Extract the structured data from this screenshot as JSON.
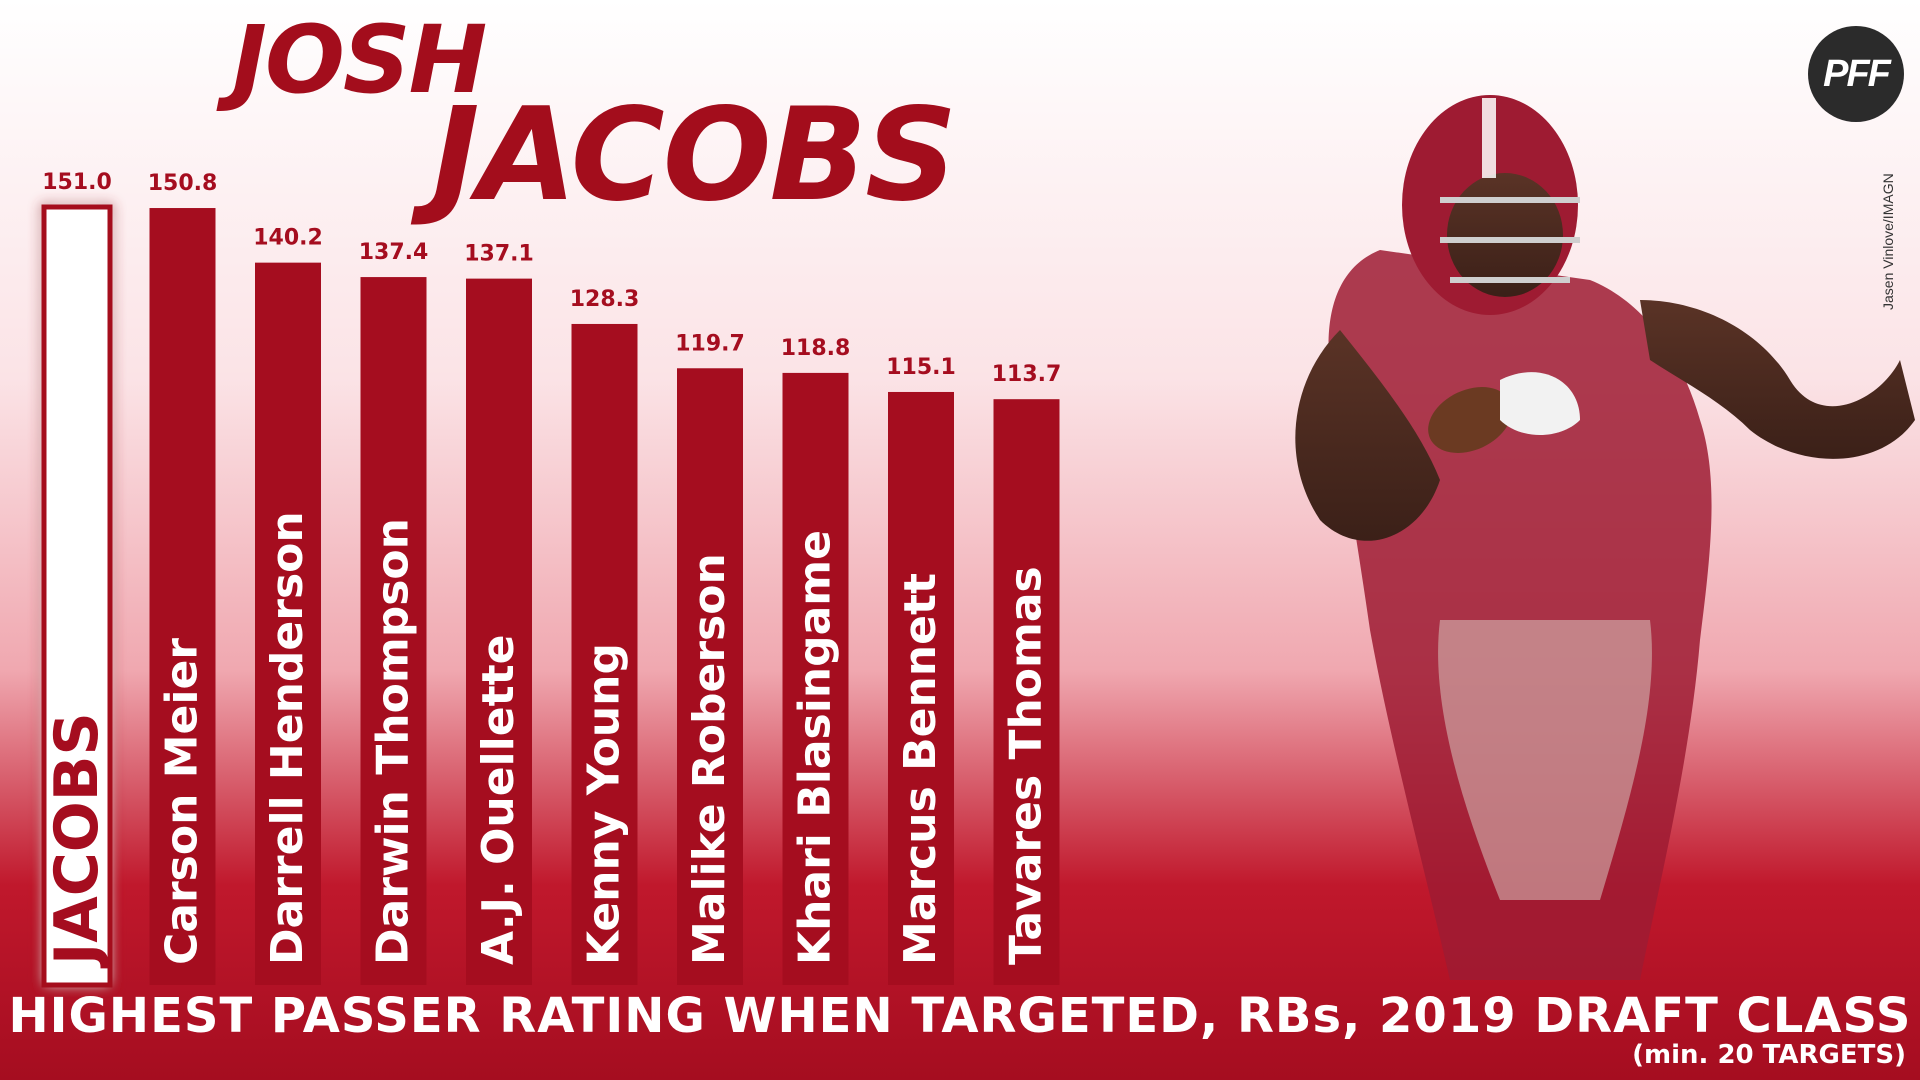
{
  "title": {
    "line1": "JOSH",
    "line2": "JACOBS"
  },
  "logo": {
    "text": "PFF"
  },
  "photo_credit": "Jasen Vinlove/IMAGN",
  "footer": {
    "main": "HIGHEST PASSER RATING WHEN TARGETED, RBs, 2019 DRAFT CLASS",
    "sub": "(min. 20 TARGETS)"
  },
  "colors": {
    "bar": "#a50d1f",
    "highlight_bar_fill": "#ffffff",
    "value_label": "#a50d1f",
    "jersey": "#9e1b32"
  },
  "chart_data": {
    "type": "bar",
    "categories": [
      "JACOBS",
      "Carson Meier",
      "Darrell Henderson",
      "Darwin Thompson",
      "A.J. Ouellette",
      "Kenny Young",
      "Malike Roberson",
      "Khari Blasingame",
      "Marcus Bennett",
      "Tavares Thomas"
    ],
    "values": [
      151.0,
      150.8,
      140.2,
      137.4,
      137.1,
      128.3,
      119.7,
      118.8,
      115.1,
      113.7
    ],
    "value_labels": [
      "151.0",
      "150.8",
      "140.2",
      "137.4",
      "137.1",
      "128.3",
      "119.7",
      "118.8",
      "115.1",
      "113.7"
    ],
    "highlight": "JACOBS",
    "ylabel": "",
    "title": "HIGHEST PASSER RATING WHEN TARGETED, RBs, 2019 DRAFT CLASS"
  }
}
